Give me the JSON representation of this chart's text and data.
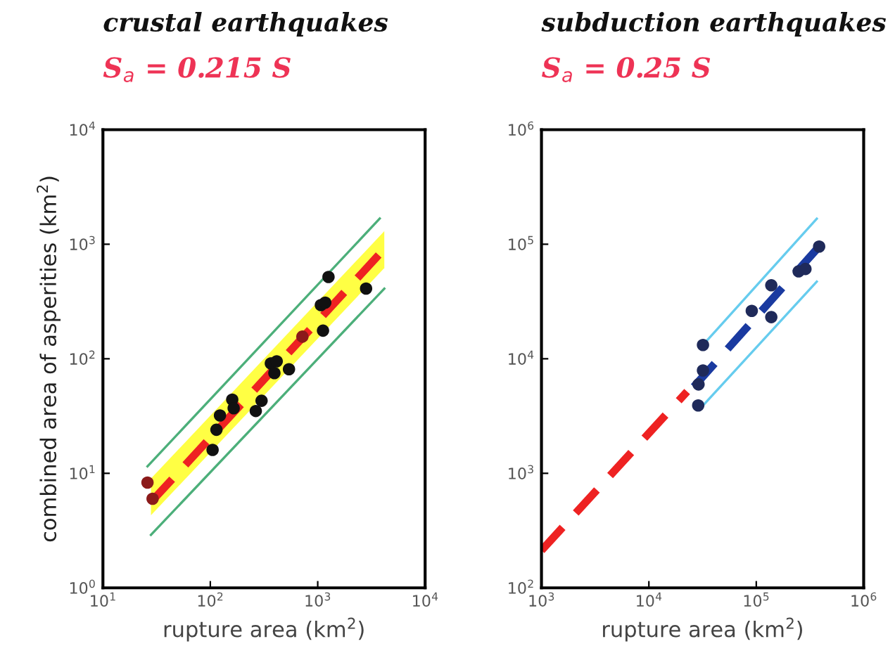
{
  "chart_data": [
    {
      "type": "scatter",
      "title": "crustal earthquakes",
      "subtitle": "S$_{a}$ = 0.215 S",
      "xlabel": "rupture area (km$^{2}$)",
      "ylabel": "combined area of asperities (km$^{2}$)",
      "log": "xy",
      "grid": false,
      "legend": false,
      "xlim": [
        10,
        10000
      ],
      "ylim": [
        1,
        10000
      ],
      "xticks": [
        {
          "value": 10,
          "label": "10$^{1}$"
        },
        {
          "value": 100,
          "label": "10$^{2}$"
        },
        {
          "value": 1000,
          "label": "10$^{3}$"
        },
        {
          "value": 10000,
          "label": "10$^{4}$"
        }
      ],
      "yticks": [
        {
          "value": 1,
          "label": "10$^{0}$"
        },
        {
          "value": 10,
          "label": "10$^{1}$"
        },
        {
          "value": 100,
          "label": "10$^{2}$"
        },
        {
          "value": 1000,
          "label": "10$^{3}$"
        },
        {
          "value": 10000,
          "label": "10$^{4}$"
        }
      ],
      "series": [
        {
          "type": "line",
          "color": "#4caf7a",
          "line_style": "solid",
          "x": [
            26,
            3780
          ],
          "values": [
            11.5,
            1675
          ]
        },
        {
          "type": "line",
          "color": "#4caf7a",
          "line_style": "solid",
          "x": [
            28,
            4170
          ],
          "values": [
            2.9,
            410
          ]
        },
        {
          "color": "#111111",
          "marker": "circle",
          "x": [
            105,
            114,
            123,
            160,
            165,
            265,
            300,
            366,
            395,
            415,
            540,
            1070,
            1175,
            1120,
            1260,
            2820
          ],
          "values": [
            16,
            24,
            32,
            44,
            37,
            35,
            43,
            91,
            75,
            95,
            81,
            294,
            309,
            176,
            518,
            410
          ]
        },
        {
          "color": "#8b1a1a",
          "marker": "circle",
          "x": [
            26,
            29,
            720
          ],
          "values": [
            8.3,
            6.0,
            156
          ]
        },
        {
          "type": "line",
          "color": "#ee2222",
          "line_style": "dashed",
          "x": [
            28,
            4170
          ],
          "values": [
            5.6,
            910
          ],
          "lower": [
            4.3,
            620
          ],
          "upper": [
            9,
            1300
          ]
        }
      ]
    },
    {
      "type": "scatter",
      "title": "subduction earthquakes",
      "subtitle": "S$_{a}$ = 0.25 S",
      "xlabel": "rupture area (km$^{2}$)",
      "log": "xy",
      "grid": false,
      "legend": false,
      "xlim": [
        1000,
        1000000
      ],
      "ylim": [
        100,
        1000000
      ],
      "xticks": [
        {
          "value": 1000,
          "label": "10$^{3}$"
        },
        {
          "value": 10000,
          "label": "10$^{4}$"
        },
        {
          "value": 100000,
          "label": "10$^{5}$"
        },
        {
          "value": 1000000,
          "label": "10$^{6}$"
        }
      ],
      "yticks": [
        {
          "value": 100,
          "label": "10$^{2}$"
        },
        {
          "value": 1000,
          "label": "10$^{3}$"
        },
        {
          "value": 10000,
          "label": "10$^{4}$"
        },
        {
          "value": 100000,
          "label": "10$^{5}$"
        },
        {
          "value": 1000000,
          "label": "10$^{6}$"
        }
      ],
      "series": [
        {
          "type": "line",
          "color": "#66ccee",
          "line_style": "solid",
          "x": [
            31900,
            366000
          ],
          "values": [
            13200,
            167000
          ]
        },
        {
          "type": "line",
          "color": "#66ccee",
          "line_style": "solid",
          "x": [
            31900,
            366000
          ],
          "values": [
            3910,
            47100
          ]
        },
        {
          "type": "line",
          "color": "#ee2222",
          "line_style": "dashed",
          "x": [
            1000,
            22700
          ],
          "values": [
            212,
            5180
          ]
        },
        {
          "type": "line",
          "color": "#1a3aa0",
          "line_style": "dashed",
          "x": [
            26200,
            385000
          ],
          "values": [
            5690,
            95500
          ]
        },
        {
          "color": "#1f2a5a",
          "marker": "circle",
          "x": [
            31900,
            28800,
            29000,
            31900,
            90800,
            138000,
            138000,
            248000,
            287000,
            385000
          ],
          "values": [
            13200,
            3910,
            5970,
            7900,
            26200,
            43800,
            23100,
            57900,
            60800,
            95500
          ]
        }
      ]
    }
  ]
}
